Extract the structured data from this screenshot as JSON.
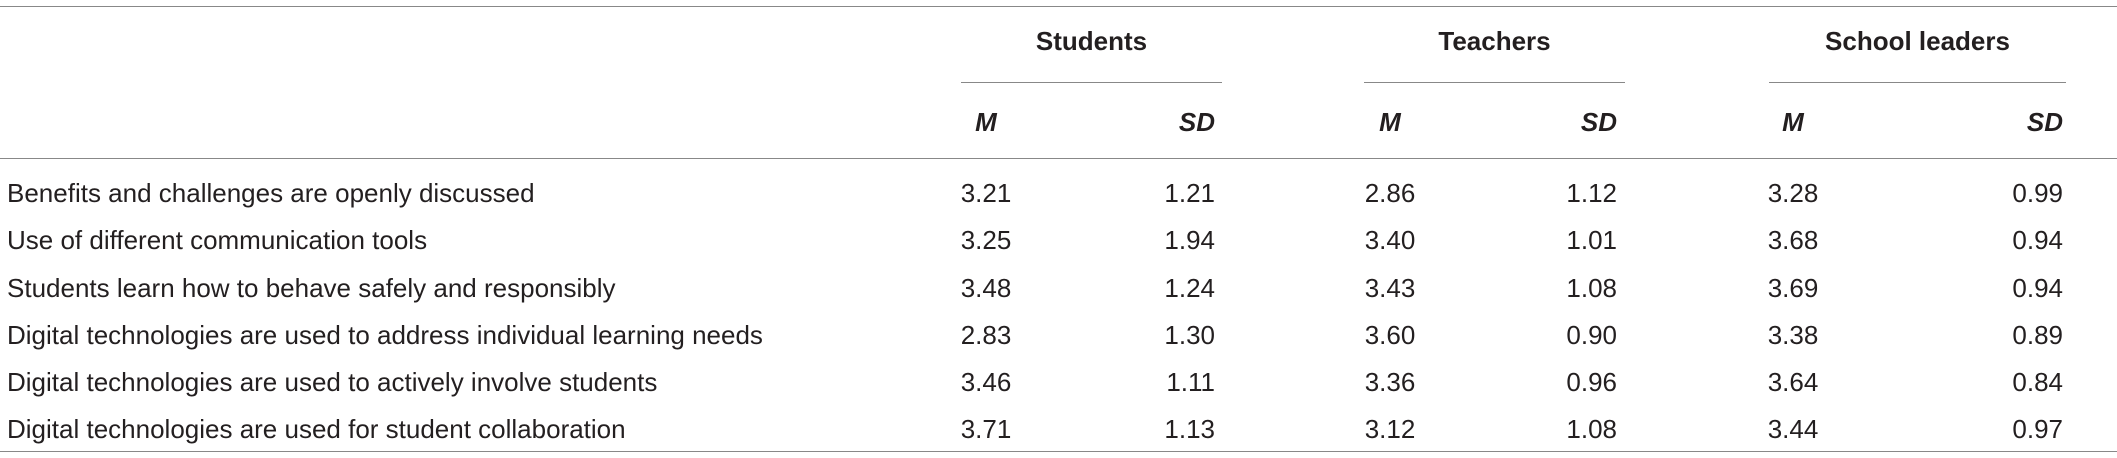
{
  "table": {
    "groups": [
      "Students",
      "Teachers",
      "School leaders"
    ],
    "subheaders": [
      "M",
      "SD",
      "M",
      "SD",
      "M",
      "SD"
    ],
    "rows": [
      [
        "Benefits and challenges are openly discussed",
        "3.21",
        "1.21",
        "2.86",
        "1.12",
        "3.28",
        "0.99"
      ],
      [
        "Use of different communication tools",
        "3.25",
        "1.94",
        "3.40",
        "1.01",
        "3.68",
        "0.94"
      ],
      [
        "Students learn how to behave safely and responsibly",
        "3.48",
        "1.24",
        "3.43",
        "1.08",
        "3.69",
        "0.94"
      ],
      [
        "Digital technologies are used to address individual learning needs",
        "2.83",
        "1.30",
        "3.60",
        "0.90",
        "3.38",
        "0.89"
      ],
      [
        "Digital technologies are used to actively involve students",
        "3.46",
        "1.11",
        "3.36",
        "0.96",
        "3.64",
        "0.84"
      ],
      [
        "Digital technologies are used for student collaboration",
        "3.71",
        "1.13",
        "3.12",
        "1.08",
        "3.44",
        "0.97"
      ]
    ]
  }
}
